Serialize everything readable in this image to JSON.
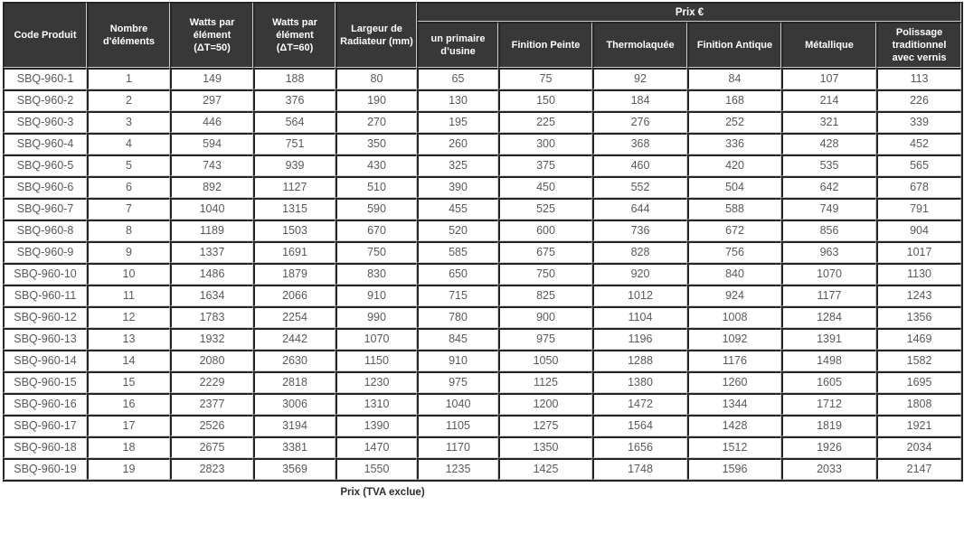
{
  "table": {
    "group_header": "Prix €",
    "main_headers": [
      "Code Produit",
      "Nombre d'éléments",
      "Watts par élément (ΔT=50)",
      "Watts par élément (ΔT=60)",
      "Largeur de Radiateur (mm)"
    ],
    "price_headers": [
      "un primaire d’usine",
      "Finition Peinte",
      "Thermolaquée",
      "Finition Antique",
      "Métallique",
      "Polissage traditionnel avec vernis"
    ],
    "rows": [
      [
        "SBQ-960-1",
        "1",
        "149",
        "188",
        "80",
        "65",
        "75",
        "92",
        "84",
        "107",
        "113"
      ],
      [
        "SBQ-960-2",
        "2",
        "297",
        "376",
        "190",
        "130",
        "150",
        "184",
        "168",
        "214",
        "226"
      ],
      [
        "SBQ-960-3",
        "3",
        "446",
        "564",
        "270",
        "195",
        "225",
        "276",
        "252",
        "321",
        "339"
      ],
      [
        "SBQ-960-4",
        "4",
        "594",
        "751",
        "350",
        "260",
        "300",
        "368",
        "336",
        "428",
        "452"
      ],
      [
        "SBQ-960-5",
        "5",
        "743",
        "939",
        "430",
        "325",
        "375",
        "460",
        "420",
        "535",
        "565"
      ],
      [
        "SBQ-960-6",
        "6",
        "892",
        "1127",
        "510",
        "390",
        "450",
        "552",
        "504",
        "642",
        "678"
      ],
      [
        "SBQ-960-7",
        "7",
        "1040",
        "1315",
        "590",
        "455",
        "525",
        "644",
        "588",
        "749",
        "791"
      ],
      [
        "SBQ-960-8",
        "8",
        "1189",
        "1503",
        "670",
        "520",
        "600",
        "736",
        "672",
        "856",
        "904"
      ],
      [
        "SBQ-960-9",
        "9",
        "1337",
        "1691",
        "750",
        "585",
        "675",
        "828",
        "756",
        "963",
        "1017"
      ],
      [
        "SBQ-960-10",
        "10",
        "1486",
        "1879",
        "830",
        "650",
        "750",
        "920",
        "840",
        "1070",
        "1130"
      ],
      [
        "SBQ-960-11",
        "11",
        "1634",
        "2066",
        "910",
        "715",
        "825",
        "1012",
        "924",
        "1177",
        "1243"
      ],
      [
        "SBQ-960-12",
        "12",
        "1783",
        "2254",
        "990",
        "780",
        "900",
        "1104",
        "1008",
        "1284",
        "1356"
      ],
      [
        "SBQ-960-13",
        "13",
        "1932",
        "2442",
        "1070",
        "845",
        "975",
        "1196",
        "1092",
        "1391",
        "1469"
      ],
      [
        "SBQ-960-14",
        "14",
        "2080",
        "2630",
        "1150",
        "910",
        "1050",
        "1288",
        "1176",
        "1498",
        "1582"
      ],
      [
        "SBQ-960-15",
        "15",
        "2229",
        "2818",
        "1230",
        "975",
        "1125",
        "1380",
        "1260",
        "1605",
        "1695"
      ],
      [
        "SBQ-960-16",
        "16",
        "2377",
        "3006",
        "1310",
        "1040",
        "1200",
        "1472",
        "1344",
        "1712",
        "1808"
      ],
      [
        "SBQ-960-17",
        "17",
        "2526",
        "3194",
        "1390",
        "1105",
        "1275",
        "1564",
        "1428",
        "1819",
        "1921"
      ],
      [
        "SBQ-960-18",
        "18",
        "2675",
        "3381",
        "1470",
        "1170",
        "1350",
        "1656",
        "1512",
        "1926",
        "2034"
      ],
      [
        "SBQ-960-19",
        "19",
        "2823",
        "3569",
        "1550",
        "1235",
        "1425",
        "1748",
        "1596",
        "2033",
        "2147"
      ]
    ]
  },
  "footer": {
    "caption": "Prix (TVA exclue)"
  },
  "colors": {
    "header_bg": "#383838",
    "dark_border": "#252525",
    "light_border": "#cccccc",
    "body_text": "#595959"
  }
}
